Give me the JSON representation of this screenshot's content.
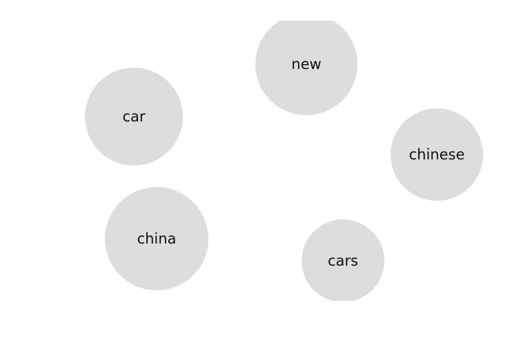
{
  "bubbles": [
    {
      "id": "new",
      "label": "new",
      "color": "#dddddd"
    },
    {
      "id": "car",
      "label": "car",
      "color": "#dddddd"
    },
    {
      "id": "chinese",
      "label": "chinese",
      "color": "#dddddd"
    },
    {
      "id": "china",
      "label": "china",
      "color": "#dddddd"
    },
    {
      "id": "cars",
      "label": "cars",
      "color": "#dddddd"
    }
  ]
}
